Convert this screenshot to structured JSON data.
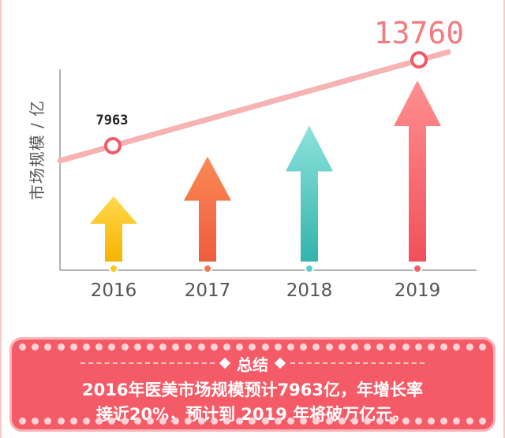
{
  "chart_data": {
    "type": "bar",
    "ylabel": "市场规模 / 亿",
    "categories": [
      "2016",
      "2017",
      "2018",
      "2019"
    ],
    "labeled_values": [
      {
        "category": "2016",
        "label": "7963"
      },
      {
        "category": "2019",
        "label": "13760"
      }
    ],
    "arrow_colors": [
      "#ffc61a",
      "#f47650",
      "#5ccfc7",
      "#f45b67"
    ],
    "bar_heights_relative": [
      0.36,
      0.58,
      0.75,
      1.0
    ],
    "trend_line_color": "#f6b3b3",
    "grid": false
  },
  "summary": {
    "title": "总结",
    "line1": "2016年医美市场规模预计7963亿，年增长率",
    "line2": "接近20%，预计到 2019 年将破万亿元。"
  }
}
